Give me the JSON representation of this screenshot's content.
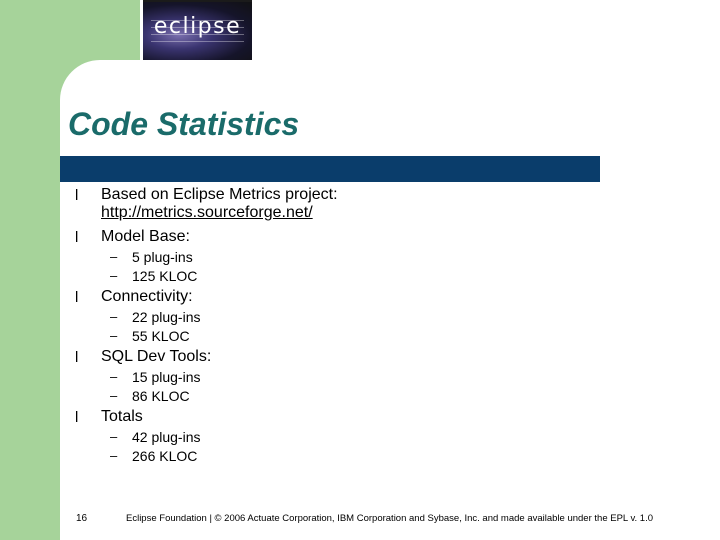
{
  "logo": {
    "text": "eclipse"
  },
  "title": "Code Statistics",
  "bullet_marker": "l",
  "sub_marker": "–",
  "bullets": [
    {
      "lines": [
        "Based on Eclipse Metrics project:",
        "http://metrics.sourceforge.net/"
      ],
      "subs": []
    },
    {
      "lines": [
        "Model Base:"
      ],
      "subs": [
        "5 plug-ins",
        "125 KLOC"
      ]
    },
    {
      "lines": [
        "Connectivity:"
      ],
      "subs": [
        "22 plug-ins",
        "55 KLOC"
      ]
    },
    {
      "lines": [
        "SQL Dev Tools:"
      ],
      "subs": [
        "15 plug-ins",
        "86 KLOC"
      ]
    },
    {
      "lines": [
        "Totals"
      ],
      "subs": [
        "42 plug-ins",
        "266 KLOC"
      ]
    }
  ],
  "slide_number": "16",
  "footer": "Eclipse Foundation | © 2006 Actuate Corporation, IBM Corporation and Sybase, Inc. and made available under the EPL v. 1.0",
  "colors": {
    "band": "#a6d39a",
    "title": "#1a6b6a",
    "title_bar": "#0a3d6b"
  }
}
